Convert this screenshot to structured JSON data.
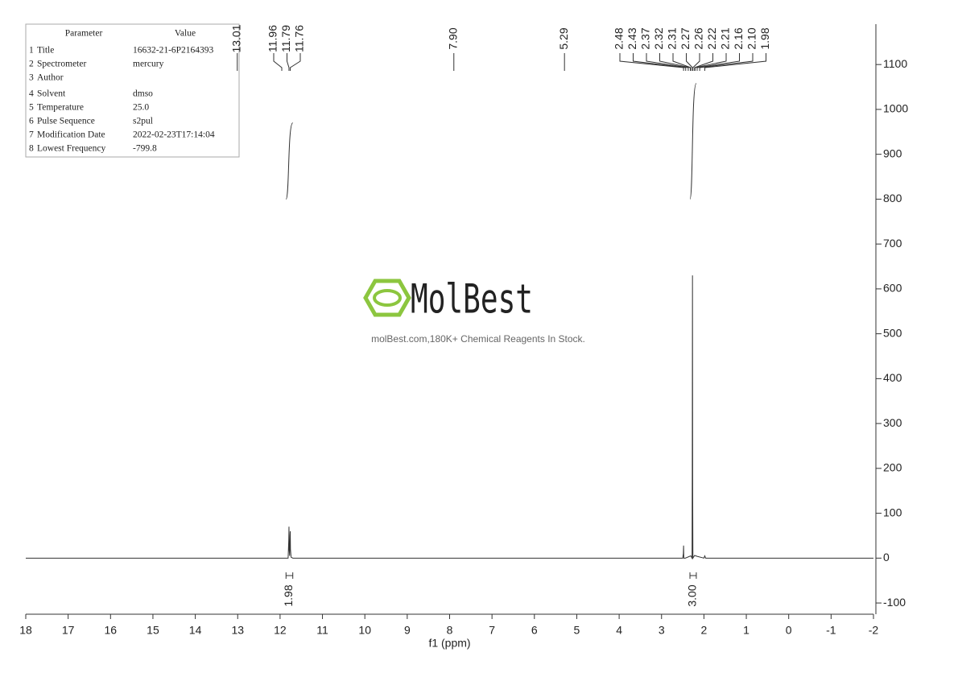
{
  "parameters": {
    "header": [
      "Parameter",
      "Value"
    ],
    "rows": [
      [
        "1",
        "Title",
        "16632-21-6P2164393"
      ],
      [
        "2",
        "Spectrometer",
        "mercury"
      ],
      [
        "3",
        "Author"
      ],
      [
        "4",
        "Solvent",
        "dmso"
      ],
      [
        "5",
        "Temperature",
        "25.0"
      ],
      [
        "6",
        "Pulse Sequence",
        "s2pul"
      ],
      [
        "7",
        "Modification Date",
        "2022-02-23T17:14:04"
      ],
      [
        "8",
        "Lowest Frequency",
        "-799.8"
      ]
    ]
  },
  "watermark": {
    "brand": "MolBest",
    "tagline": "molBest.com,180K+ Chemical Reagents In Stock."
  },
  "chart_data": {
    "type": "line",
    "x_label": "f1 (ppm)",
    "xlim": [
      18,
      -2
    ],
    "xticks": [
      18,
      17,
      16,
      15,
      14,
      13,
      12,
      11,
      10,
      9,
      8,
      7,
      6,
      5,
      4,
      3,
      2,
      1,
      0,
      -1,
      -2
    ],
    "ylim": [
      -125,
      1190
    ],
    "yticks": [
      -100,
      0,
      100,
      200,
      300,
      400,
      500,
      600,
      700,
      800,
      900,
      1000,
      1100
    ],
    "color": "#333333",
    "x": [
      18,
      11.9,
      11.81,
      11.795,
      11.79,
      11.785,
      11.775,
      11.765,
      11.76,
      11.755,
      11.74,
      11.7,
      7.9,
      5.29,
      2.5,
      2.485,
      2.48,
      2.475,
      2.44,
      2.31,
      2.28,
      2.275,
      2.27,
      2.265,
      2.26,
      2.22,
      2.16,
      2.0,
      1.98,
      1.96,
      -2
    ],
    "values": [
      0,
      0,
      0,
      40,
      70,
      20,
      5,
      50,
      60,
      20,
      2,
      0,
      0,
      0,
      0,
      10,
      28,
      0,
      0,
      5,
      0,
      200,
      630,
      150,
      0,
      6,
      4,
      0,
      5,
      0,
      0
    ],
    "peak_labels": [
      13.01,
      11.96,
      11.79,
      11.76,
      {
        "value": 7.9,
        "label": "7.90"
      },
      5.29,
      2.48,
      2.43,
      2.37,
      2.32,
      2.31,
      2.27,
      2.26,
      2.22,
      2.21,
      2.16,
      {
        "value": 2.1,
        "label": "2.10"
      },
      1.98
    ],
    "integrals": {
      "ranges": [
        [
          11.86,
          11.7
        ],
        [
          2.33,
          2.18
        ]
      ],
      "values": [
        1.98,
        3
      ],
      "value_labels": [
        "1.98",
        "3.00"
      ],
      "curve_start": [
        800,
        800
      ],
      "curve_end": [
        970,
        1058
      ]
    }
  }
}
